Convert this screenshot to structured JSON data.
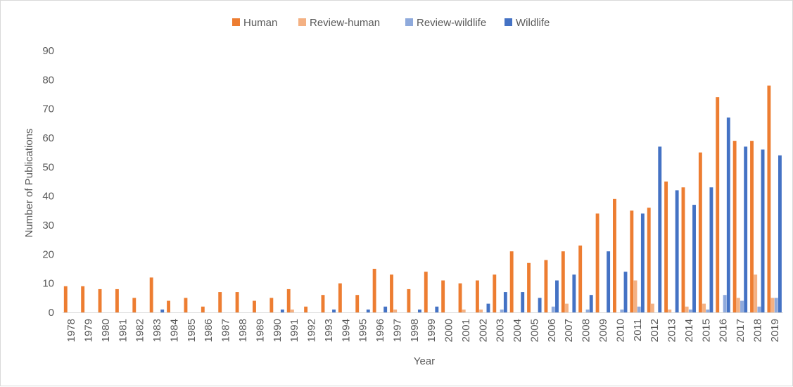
{
  "chart_data": {
    "type": "bar",
    "xlabel": "Year",
    "ylabel": "Number of Publications",
    "ylim": [
      0,
      90
    ],
    "yticks": [
      0,
      10,
      20,
      30,
      40,
      50,
      60,
      70,
      80,
      90
    ],
    "grid": false,
    "legend_position": "top-center",
    "categories": [
      "1978",
      "1979",
      "1980",
      "1981",
      "1982",
      "1983",
      "1984",
      "1985",
      "1986",
      "1987",
      "1988",
      "1989",
      "1990",
      "1991",
      "1992",
      "1993",
      "1994",
      "1995",
      "1996",
      "1997",
      "1998",
      "1999",
      "2000",
      "2001",
      "2002",
      "2003",
      "2004",
      "2005",
      "2006",
      "2007",
      "2008",
      "2009",
      "2010",
      "2011",
      "2012",
      "2013",
      "2014",
      "2015",
      "2016",
      "2017",
      "2018",
      "2019"
    ],
    "series": [
      {
        "name": "Human",
        "color": "#ED7D31",
        "values": [
          9,
          9,
          8,
          8,
          5,
          12,
          4,
          5,
          2,
          7,
          7,
          4,
          5,
          8,
          2,
          6,
          10,
          6,
          15,
          13,
          8,
          14,
          11,
          10,
          11,
          13,
          21,
          17,
          18,
          21,
          23,
          34,
          39,
          35,
          36,
          45,
          43,
          55,
          74,
          59,
          59,
          78
        ]
      },
      {
        "name": "Review-human",
        "color": "#F4B183",
        "values": [
          0,
          0,
          0,
          0,
          0,
          0,
          0,
          0,
          0,
          0,
          0,
          0,
          0,
          1,
          0,
          0,
          0,
          0,
          0,
          1,
          0,
          0,
          0,
          1,
          1,
          0,
          0,
          0,
          0,
          3,
          0,
          0,
          0,
          11,
          3,
          1,
          2,
          3,
          0,
          5,
          13,
          5
        ]
      },
      {
        "name": "Review-wildlife",
        "color": "#8FAADC",
        "values": [
          0,
          0,
          0,
          0,
          0,
          0,
          0,
          0,
          0,
          0,
          0,
          0,
          0,
          0,
          0,
          0,
          0,
          0,
          0,
          0,
          0,
          0,
          0,
          0,
          0,
          1,
          0,
          0,
          2,
          0,
          1,
          0,
          1,
          2,
          0,
          0,
          1,
          1,
          6,
          4,
          2,
          5
        ]
      },
      {
        "name": "Wildlife",
        "color": "#4472C4",
        "values": [
          0,
          0,
          0,
          0,
          0,
          1,
          0,
          0,
          0,
          0,
          0,
          0,
          1,
          0,
          0,
          1,
          0,
          1,
          2,
          0,
          1,
          2,
          0,
          0,
          3,
          7,
          7,
          5,
          11,
          13,
          6,
          21,
          14,
          34,
          57,
          42,
          37,
          43,
          67,
          57,
          56,
          54
        ]
      }
    ]
  }
}
